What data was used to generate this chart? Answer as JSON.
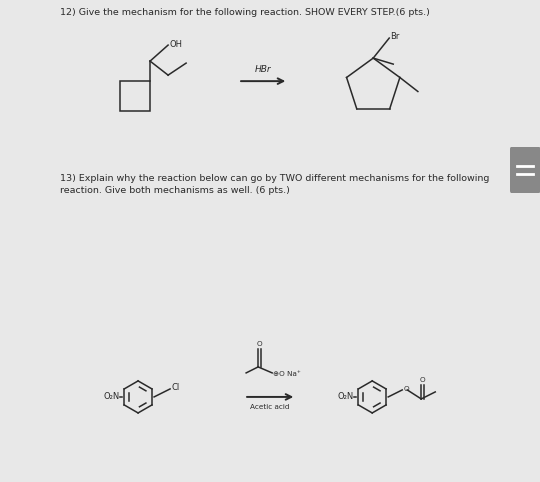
{
  "bg_color": "#e8e8e8",
  "panel1_bg": "#ffffff",
  "panel2_bg": "#f0f0f0",
  "title1": "12) Give the mechanism for the following reaction. SHOW EVERY STEP.(6 pts.)",
  "title2_line1": "13) Explain why the reaction below can go by TWO different mechanisms for the following",
  "title2_line2": "reaction. Give both mechanisms as well. (6 pts.)",
  "reagent1": "HBr",
  "reagent2_label": "Acetic acid",
  "label_br": "Br",
  "label_oh": "OH",
  "label_o2n": "O₂N",
  "label_cl": "Cl",
  "label_o": "O",
  "label_na": "⊕O Na⁺",
  "scrollbar_color": "#888888",
  "scrollbar_bg": "#bbbbbb",
  "line_color": "#2a2a2a",
  "text_color": "#2a2a2a",
  "font_size_title": 6.8,
  "font_size_label": 6.0,
  "font_size_small": 5.2
}
